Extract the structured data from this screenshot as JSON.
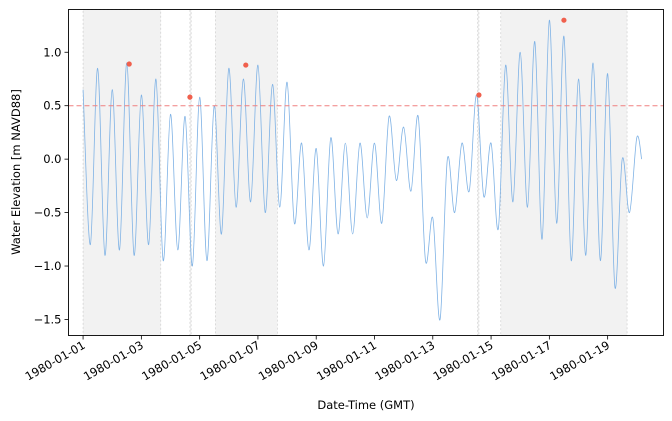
{
  "chart_data": {
    "type": "line",
    "title": "",
    "xlabel": "Date-Time (GMT)",
    "ylabel": "Water Elevation [m NAVD88]",
    "xlim": [
      "1980-01-00T12:00",
      "1980-01-20T22:00"
    ],
    "ylim": [
      -1.65,
      1.4
    ],
    "grid": false,
    "x_ticks": [
      "1980-01-01",
      "1980-01-03",
      "1980-01-05",
      "1980-01-07",
      "1980-01-09",
      "1980-01-11",
      "1980-01-13",
      "1980-01-15",
      "1980-01-17",
      "1980-01-19"
    ],
    "y_ticks": [
      "1.0",
      "0.5",
      "0.0",
      "−0.5",
      "−1.0",
      "−1.5"
    ],
    "y_tick_values": [
      1.0,
      0.5,
      0.0,
      -0.5,
      -1.0,
      -1.5
    ],
    "threshold": {
      "value": 0.5,
      "color": "#f08080",
      "style": "dashed"
    },
    "series": [
      {
        "color": "#7fb2e5",
        "x": [
          "1980-01-01T00:00",
          "1980-01-01T06:00",
          "1980-01-01T12:00",
          "1980-01-01T18:00",
          "1980-01-02T00:00",
          "1980-01-02T06:00",
          "1980-01-02T12:00",
          "1980-01-02T18:00",
          "1980-01-03T00:00",
          "1980-01-03T06:00",
          "1980-01-03T12:00",
          "1980-01-03T18:00",
          "1980-01-04T00:00",
          "1980-01-04T06:00",
          "1980-01-04T12:00",
          "1980-01-04T18:00",
          "1980-01-05T00:00",
          "1980-01-05T06:00",
          "1980-01-05T12:00",
          "1980-01-05T18:00",
          "1980-01-06T00:00",
          "1980-01-06T06:00",
          "1980-01-06T12:00",
          "1980-01-06T18:00",
          "1980-01-07T00:00",
          "1980-01-07T06:00",
          "1980-01-07T12:00",
          "1980-01-07T18:00",
          "1980-01-08T00:00",
          "1980-01-08T06:00",
          "1980-01-08T12:00",
          "1980-01-08T18:00",
          "1980-01-09T00:00",
          "1980-01-09T06:00",
          "1980-01-09T12:00",
          "1980-01-09T18:00",
          "1980-01-10T00:00",
          "1980-01-10T06:00",
          "1980-01-10T12:00",
          "1980-01-10T18:00",
          "1980-01-11T00:00",
          "1980-01-11T06:00",
          "1980-01-11T12:00",
          "1980-01-11T18:00",
          "1980-01-12T00:00",
          "1980-01-12T06:00",
          "1980-01-12T12:00",
          "1980-01-12T18:00",
          "1980-01-13T00:00",
          "1980-01-13T06:00",
          "1980-01-13T12:00",
          "1980-01-13T18:00",
          "1980-01-14T00:00",
          "1980-01-14T06:00",
          "1980-01-14T12:00",
          "1980-01-14T18:00",
          "1980-01-15T00:00",
          "1980-01-15T06:00",
          "1980-01-15T12:00",
          "1980-01-15T18:00",
          "1980-01-16T00:00",
          "1980-01-16T06:00",
          "1980-01-16T12:00",
          "1980-01-16T18:00",
          "1980-01-17T00:00",
          "1980-01-17T06:00",
          "1980-01-17T12:00",
          "1980-01-17T18:00",
          "1980-01-18T00:00",
          "1980-01-18T06:00",
          "1980-01-18T12:00",
          "1980-01-18T18:00",
          "1980-01-19T00:00",
          "1980-01-19T06:00",
          "1980-01-19T12:00",
          "1980-01-19T18:00",
          "1980-01-20T00:00",
          "1980-01-20T04:00"
        ],
        "y": [
          0.65,
          -0.8,
          0.85,
          -0.9,
          0.65,
          -0.85,
          0.9,
          -0.9,
          0.6,
          -0.8,
          0.75,
          -0.95,
          0.42,
          -0.85,
          0.4,
          -1.0,
          0.58,
          -0.95,
          0.5,
          -0.7,
          0.85,
          -0.45,
          0.75,
          -0.4,
          0.88,
          -0.5,
          0.7,
          -0.45,
          0.72,
          -0.6,
          0.15,
          -0.85,
          0.1,
          -1.0,
          0.2,
          -0.7,
          0.15,
          -0.7,
          0.15,
          -0.55,
          0.15,
          -0.6,
          0.4,
          -0.2,
          0.3,
          -0.3,
          0.4,
          -0.95,
          -0.55,
          -1.5,
          0.0,
          -0.5,
          0.15,
          -0.3,
          0.6,
          -0.35,
          0.15,
          -0.65,
          0.88,
          -0.4,
          1.0,
          -0.45,
          1.1,
          -0.75,
          1.3,
          -0.6,
          1.15,
          -0.95,
          0.75,
          -0.9,
          0.9,
          -0.95,
          0.8,
          -1.2,
          0.0,
          -0.5,
          0.2,
          0.0
        ]
      }
    ],
    "peaks": [
      {
        "x": "1980-01-02T14:00",
        "y": 0.89
      },
      {
        "x": "1980-01-04T16:00",
        "y": 0.58
      },
      {
        "x": "1980-01-06T14:00",
        "y": 0.88
      },
      {
        "x": "1980-01-14T14:00",
        "y": 0.6
      },
      {
        "x": "1980-01-17T12:00",
        "y": 1.3
      }
    ],
    "peak_color": "#f0604d",
    "shaded_spans": [
      {
        "start": "1980-01-01T00:00",
        "end": "1980-01-03T16:00"
      },
      {
        "start": "1980-01-04T16:00",
        "end": "1980-01-04T17:00"
      },
      {
        "start": "1980-01-05T13:00",
        "end": "1980-01-07T16:00"
      },
      {
        "start": "1980-01-14T13:00",
        "end": "1980-01-14T14:00"
      },
      {
        "start": "1980-01-15T08:00",
        "end": "1980-01-19T16:00"
      }
    ]
  }
}
